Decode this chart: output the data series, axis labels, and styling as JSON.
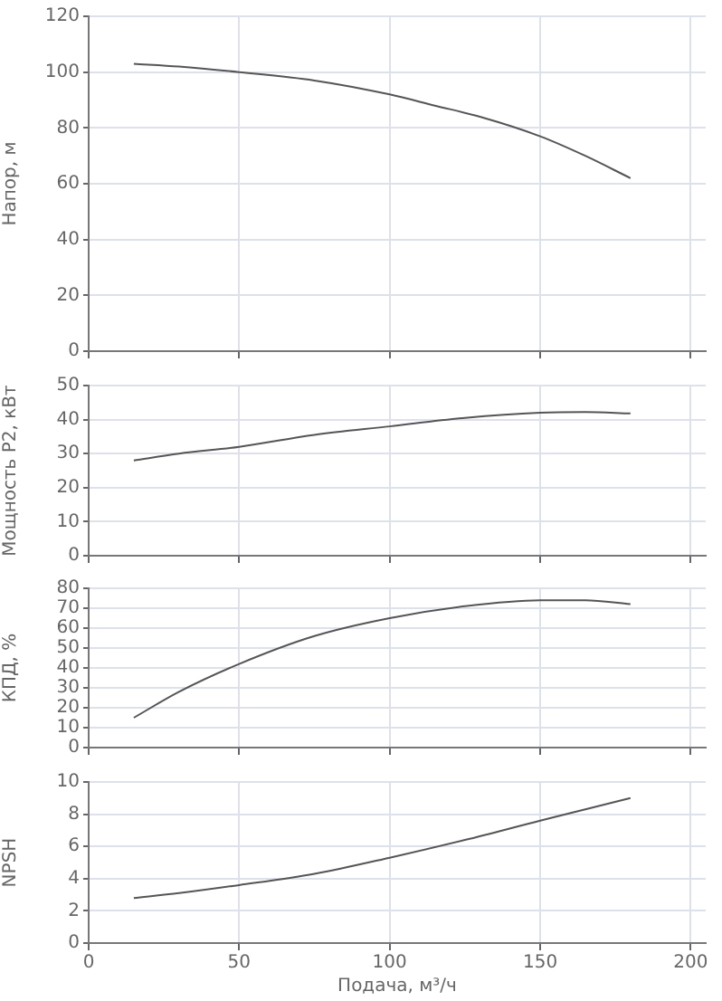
{
  "chart_data": [
    {
      "type": "line",
      "ylabel": "Напор, м",
      "xlim": [
        0,
        205
      ],
      "xticks": [
        0,
        50,
        100,
        150,
        200
      ],
      "ylim": [
        0,
        120
      ],
      "yticks": [
        0,
        20,
        40,
        60,
        80,
        100,
        120
      ],
      "grid": true,
      "tick_labels": "y",
      "marker": "none",
      "color": "#555555",
      "x": [
        15,
        30,
        50,
        75,
        100,
        115,
        130,
        150,
        165,
        180
      ],
      "values": [
        103,
        102,
        100,
        97,
        92,
        88,
        84,
        77,
        70,
        62
      ]
    },
    {
      "type": "line",
      "ylabel": "Мощность P2, кВт",
      "xlim": [
        0,
        205
      ],
      "xticks": [
        0,
        50,
        100,
        150,
        200
      ],
      "ylim": [
        0,
        50
      ],
      "yticks": [
        0,
        10,
        20,
        30,
        40,
        50
      ],
      "grid": true,
      "tick_labels": "y",
      "marker": "none",
      "color": "#555555",
      "x": [
        15,
        30,
        50,
        75,
        100,
        125,
        150,
        165,
        180
      ],
      "values": [
        28,
        30,
        32,
        35.5,
        38,
        40.5,
        42,
        42.2,
        41.8
      ]
    },
    {
      "type": "line",
      "ylabel": "КПД, %",
      "xlim": [
        0,
        205
      ],
      "xticks": [
        0,
        50,
        100,
        150,
        200
      ],
      "ylim": [
        0,
        80
      ],
      "yticks": [
        0,
        10,
        20,
        30,
        40,
        50,
        60,
        70,
        80
      ],
      "grid": true,
      "tick_labels": "y",
      "marker": "none",
      "color": "#555555",
      "x": [
        15,
        30,
        50,
        75,
        100,
        125,
        150,
        165,
        180
      ],
      "values": [
        15,
        28,
        42,
        56,
        65,
        71,
        74,
        74,
        72
      ]
    },
    {
      "type": "line",
      "ylabel": "NPSH",
      "xlabel": "Подача, м³/ч",
      "xlim": [
        0,
        205
      ],
      "xticks": [
        0,
        50,
        100,
        150,
        200
      ],
      "ylim": [
        0,
        10
      ],
      "yticks": [
        0,
        2,
        4,
        6,
        8,
        10
      ],
      "grid": true,
      "marker": "none",
      "color": "#555555",
      "x": [
        15,
        30,
        50,
        75,
        100,
        125,
        150,
        165,
        180
      ],
      "values": [
        2.8,
        3.1,
        3.6,
        4.3,
        5.3,
        6.4,
        7.6,
        8.3,
        9.0
      ]
    }
  ]
}
